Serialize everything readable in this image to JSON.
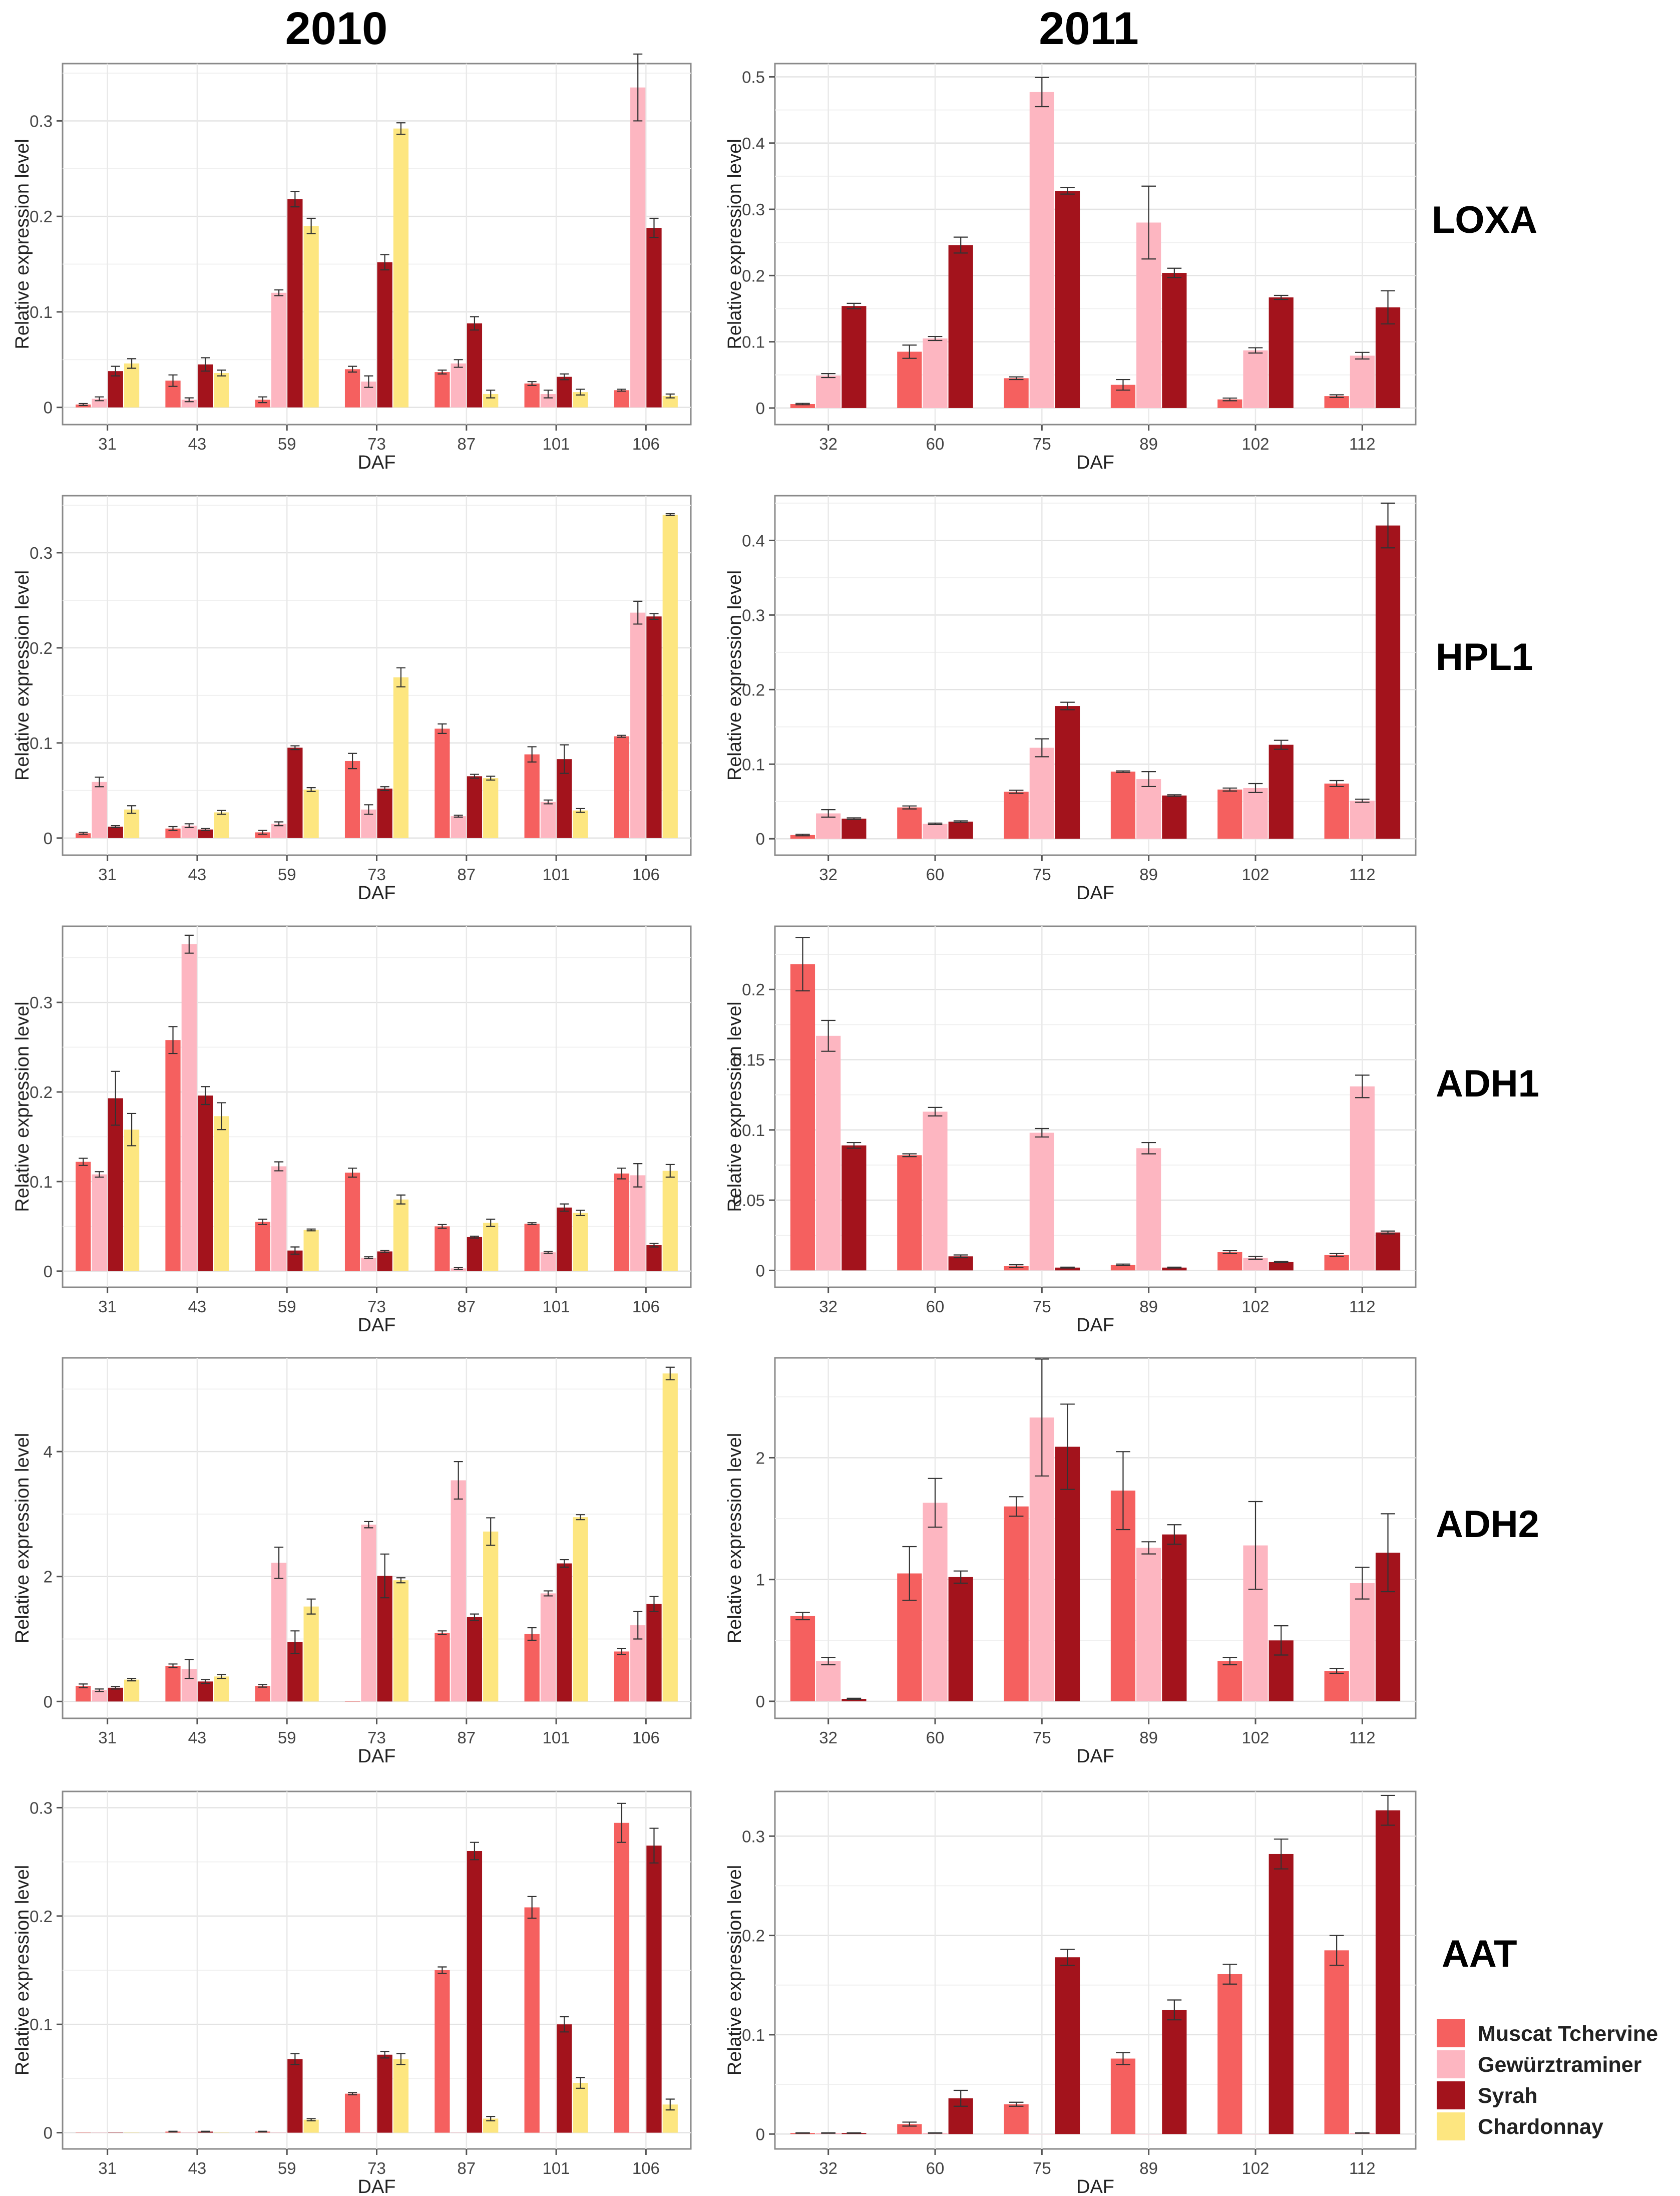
{
  "years": [
    "2010",
    "2011"
  ],
  "genes": [
    "LOXA",
    "HPL1",
    "ADH1",
    "ADH2",
    "AAT"
  ],
  "legend": {
    "entries": [
      {
        "name": "Muscat Tchervine",
        "color": "#f5605f"
      },
      {
        "name": "Gewürztraminer",
        "color": "#fdb6c1"
      },
      {
        "name": "Syrah",
        "color": "#a3131c"
      },
      {
        "name": "Chardonnay",
        "color": "#fde680"
      }
    ]
  },
  "chart_data": [
    {
      "type": "bar",
      "gene": "LOXA",
      "year": "2010",
      "xlabel": "DAF",
      "ylabel": "Relative expression level",
      "categories": [
        "31",
        "43",
        "59",
        "73",
        "87",
        "101",
        "106"
      ],
      "ylim": [
        -0.018,
        0.36
      ],
      "yticks": [
        0.0,
        0.1,
        0.2,
        0.3
      ],
      "series": [
        {
          "name": "Muscat Tchervine",
          "values": [
            0.003,
            0.028,
            0.008,
            0.04,
            0.037,
            0.025,
            0.018
          ],
          "errors": [
            0.001,
            0.006,
            0.003,
            0.003,
            0.002,
            0.002,
            0.001
          ]
        },
        {
          "name": "Gewürztraminer",
          "values": [
            0.009,
            0.008,
            0.12,
            0.027,
            0.046,
            0.014,
            0.335
          ],
          "errors": [
            0.002,
            0.002,
            0.003,
            0.006,
            0.004,
            0.004,
            0.035
          ]
        },
        {
          "name": "Syrah",
          "values": [
            0.038,
            0.045,
            0.218,
            0.152,
            0.088,
            0.032,
            0.188
          ],
          "errors": [
            0.005,
            0.007,
            0.008,
            0.008,
            0.007,
            0.003,
            0.01
          ]
        },
        {
          "name": "Chardonnay",
          "values": [
            0.046,
            0.036,
            0.19,
            0.292,
            0.014,
            0.016,
            0.012
          ],
          "errors": [
            0.005,
            0.003,
            0.008,
            0.006,
            0.004,
            0.003,
            0.002
          ]
        }
      ]
    },
    {
      "type": "bar",
      "gene": "LOXA",
      "year": "2011",
      "xlabel": "DAF",
      "ylabel": "Relative expression level",
      "categories": [
        "32",
        "60",
        "75",
        "89",
        "102",
        "112"
      ],
      "ylim": [
        -0.025,
        0.52
      ],
      "yticks": [
        0.0,
        0.1,
        0.2,
        0.3,
        0.4,
        0.5
      ],
      "series": [
        {
          "name": "Muscat Tchervine",
          "values": [
            0.006,
            0.085,
            0.045,
            0.035,
            0.013,
            0.018
          ],
          "errors": [
            0.001,
            0.01,
            0.002,
            0.008,
            0.002,
            0.002
          ]
        },
        {
          "name": "Gewürztraminer",
          "values": [
            0.049,
            0.105,
            0.477,
            0.28,
            0.087,
            0.079
          ],
          "errors": [
            0.003,
            0.003,
            0.022,
            0.055,
            0.004,
            0.005
          ]
        },
        {
          "name": "Syrah",
          "values": [
            0.154,
            0.246,
            0.328,
            0.204,
            0.167,
            0.152
          ],
          "errors": [
            0.004,
            0.012,
            0.005,
            0.007,
            0.003,
            0.025
          ]
        }
      ]
    },
    {
      "type": "bar",
      "gene": "HPL1",
      "year": "2010",
      "xlabel": "DAF",
      "ylabel": "Relative expression level",
      "categories": [
        "31",
        "43",
        "59",
        "73",
        "87",
        "101",
        "106"
      ],
      "ylim": [
        -0.018,
        0.36
      ],
      "yticks": [
        0.0,
        0.1,
        0.2,
        0.3
      ],
      "series": [
        {
          "name": "Muscat Tchervine",
          "values": [
            0.005,
            0.01,
            0.006,
            0.081,
            0.115,
            0.088,
            0.107
          ],
          "errors": [
            0.001,
            0.002,
            0.002,
            0.008,
            0.005,
            0.008,
            0.001
          ]
        },
        {
          "name": "Gewürztraminer",
          "values": [
            0.059,
            0.013,
            0.015,
            0.03,
            0.023,
            0.038,
            0.237
          ],
          "errors": [
            0.005,
            0.002,
            0.002,
            0.005,
            0.001,
            0.002,
            0.012
          ]
        },
        {
          "name": "Syrah",
          "values": [
            0.012,
            0.009,
            0.095,
            0.052,
            0.065,
            0.083,
            0.233
          ],
          "errors": [
            0.001,
            0.001,
            0.002,
            0.002,
            0.002,
            0.015,
            0.003
          ]
        },
        {
          "name": "Chardonnay",
          "values": [
            0.03,
            0.027,
            0.051,
            0.169,
            0.063,
            0.029,
            0.34
          ],
          "errors": [
            0.004,
            0.002,
            0.002,
            0.01,
            0.002,
            0.002,
            0.001
          ]
        }
      ]
    },
    {
      "type": "bar",
      "gene": "HPL1",
      "year": "2011",
      "xlabel": "DAF",
      "ylabel": "Relative expression level",
      "categories": [
        "32",
        "60",
        "75",
        "89",
        "102",
        "112"
      ],
      "ylim": [
        -0.022,
        0.46
      ],
      "yticks": [
        0.0,
        0.1,
        0.2,
        0.3,
        0.4
      ],
      "series": [
        {
          "name": "Muscat Tchervine",
          "values": [
            0.005,
            0.042,
            0.063,
            0.09,
            0.066,
            0.074
          ],
          "errors": [
            0.001,
            0.002,
            0.002,
            0.001,
            0.002,
            0.004
          ]
        },
        {
          "name": "Gewürztraminer",
          "values": [
            0.034,
            0.02,
            0.122,
            0.08,
            0.068,
            0.051
          ],
          "errors": [
            0.005,
            0.001,
            0.012,
            0.01,
            0.006,
            0.002
          ]
        },
        {
          "name": "Syrah",
          "values": [
            0.027,
            0.023,
            0.178,
            0.058,
            0.126,
            0.42
          ],
          "errors": [
            0.001,
            0.001,
            0.005,
            0.001,
            0.006,
            0.03
          ]
        }
      ]
    },
    {
      "type": "bar",
      "gene": "ADH1",
      "year": "2010",
      "xlabel": "DAF",
      "ylabel": "Relative expression level",
      "categories": [
        "31",
        "43",
        "59",
        "73",
        "87",
        "101",
        "106"
      ],
      "ylim": [
        -0.018,
        0.385
      ],
      "yticks": [
        0.0,
        0.1,
        0.2,
        0.3
      ],
      "series": [
        {
          "name": "Muscat Tchervine",
          "values": [
            0.122,
            0.258,
            0.055,
            0.11,
            0.05,
            0.053,
            0.109
          ],
          "errors": [
            0.004,
            0.015,
            0.003,
            0.005,
            0.002,
            0.001,
            0.006
          ]
        },
        {
          "name": "Gewürztraminer",
          "values": [
            0.108,
            0.365,
            0.117,
            0.015,
            0.003,
            0.021,
            0.107
          ],
          "errors": [
            0.003,
            0.01,
            0.005,
            0.001,
            0.001,
            0.001,
            0.013
          ]
        },
        {
          "name": "Syrah",
          "values": [
            0.193,
            0.196,
            0.023,
            0.022,
            0.038,
            0.071,
            0.029
          ],
          "errors": [
            0.03,
            0.01,
            0.004,
            0.001,
            0.001,
            0.004,
            0.002
          ]
        },
        {
          "name": "Chardonnay",
          "values": [
            0.158,
            0.173,
            0.046,
            0.08,
            0.054,
            0.065,
            0.112
          ],
          "errors": [
            0.018,
            0.015,
            0.001,
            0.005,
            0.004,
            0.003,
            0.007
          ]
        }
      ]
    },
    {
      "type": "bar",
      "gene": "ADH1",
      "year": "2011",
      "xlabel": "DAF",
      "ylabel": "Relative expression level",
      "categories": [
        "32",
        "60",
        "75",
        "89",
        "102",
        "112"
      ],
      "ylim": [
        -0.012,
        0.245
      ],
      "yticks": [
        0.0,
        0.05,
        0.1,
        0.15,
        0.2
      ],
      "series": [
        {
          "name": "Muscat Tchervine",
          "values": [
            0.218,
            0.082,
            0.003,
            0.004,
            0.013,
            0.011
          ],
          "errors": [
            0.019,
            0.001,
            0.001,
            0.0005,
            0.001,
            0.001
          ]
        },
        {
          "name": "Gewürztraminer",
          "values": [
            0.167,
            0.113,
            0.098,
            0.087,
            0.009,
            0.131
          ],
          "errors": [
            0.011,
            0.003,
            0.003,
            0.004,
            0.001,
            0.008
          ]
        },
        {
          "name": "Syrah",
          "values": [
            0.089,
            0.01,
            0.002,
            0.002,
            0.006,
            0.027
          ],
          "errors": [
            0.002,
            0.001,
            0.0003,
            0.0003,
            0.0005,
            0.001
          ]
        }
      ]
    },
    {
      "type": "bar",
      "gene": "ADH2",
      "year": "2010",
      "xlabel": "DAF",
      "ylabel": "Relative expression level",
      "categories": [
        "31",
        "43",
        "59",
        "73",
        "87",
        "101",
        "106"
      ],
      "ylim": [
        -0.27,
        5.5
      ],
      "yticks": [
        0,
        2,
        4
      ],
      "series": [
        {
          "name": "Muscat Tchervine",
          "values": [
            0.25,
            0.57,
            0.25,
            0.0,
            1.1,
            1.08,
            0.8
          ],
          "errors": [
            0.03,
            0.03,
            0.02,
            0.0,
            0.03,
            0.1,
            0.05
          ]
        },
        {
          "name": "Gewürztraminer",
          "values": [
            0.18,
            0.52,
            2.22,
            2.83,
            3.54,
            1.73,
            1.22
          ],
          "errors": [
            0.02,
            0.15,
            0.25,
            0.05,
            0.3,
            0.04,
            0.22
          ]
        },
        {
          "name": "Syrah",
          "values": [
            0.22,
            0.32,
            0.95,
            2.01,
            1.35,
            2.21,
            1.56
          ],
          "errors": [
            0.02,
            0.03,
            0.18,
            0.35,
            0.05,
            0.06,
            0.12
          ]
        },
        {
          "name": "Chardonnay",
          "values": [
            0.35,
            0.4,
            1.52,
            1.94,
            2.72,
            2.95,
            5.25
          ],
          "errors": [
            0.02,
            0.03,
            0.12,
            0.04,
            0.22,
            0.04,
            0.1
          ]
        }
      ]
    },
    {
      "type": "bar",
      "gene": "ADH2",
      "year": "2011",
      "xlabel": "DAF",
      "ylabel": "Relative expression level",
      "categories": [
        "32",
        "60",
        "75",
        "89",
        "102",
        "112"
      ],
      "ylim": [
        -0.14,
        2.82
      ],
      "yticks": [
        0,
        1,
        2
      ],
      "series": [
        {
          "name": "Muscat Tchervine",
          "values": [
            0.7,
            1.05,
            1.6,
            1.73,
            0.33,
            0.25
          ],
          "errors": [
            0.03,
            0.22,
            0.08,
            0.32,
            0.03,
            0.02
          ]
        },
        {
          "name": "Gewürztraminer",
          "values": [
            0.33,
            1.63,
            2.33,
            1.26,
            1.28,
            0.97
          ],
          "errors": [
            0.03,
            0.2,
            0.48,
            0.05,
            0.36,
            0.13
          ]
        },
        {
          "name": "Syrah",
          "values": [
            0.02,
            1.02,
            2.09,
            1.37,
            0.5,
            1.22
          ],
          "errors": [
            0.005,
            0.05,
            0.35,
            0.08,
            0.12,
            0.32
          ]
        }
      ]
    },
    {
      "type": "bar",
      "gene": "AAT",
      "year": "2010",
      "xlabel": "DAF",
      "ylabel": "Relative expression level",
      "categories": [
        "31",
        "43",
        "59",
        "73",
        "87",
        "101",
        "106"
      ],
      "ylim": [
        -0.015,
        0.315
      ],
      "yticks": [
        0.0,
        0.1,
        0.2,
        0.3
      ],
      "series": [
        {
          "name": "Muscat Tchervine",
          "values": [
            0.0,
            0.001,
            0.001,
            0.036,
            0.15,
            0.208,
            0.286
          ],
          "errors": [
            0.0,
            0.0003,
            0.0003,
            0.001,
            0.003,
            0.01,
            0.018
          ]
        },
        {
          "name": "Gewürztraminer",
          "values": [
            0.0,
            0.0,
            0.0,
            0.0,
            0.0,
            0.0,
            0.0
          ],
          "errors": [
            0,
            0,
            0,
            0,
            0,
            0,
            0
          ]
        },
        {
          "name": "Syrah",
          "values": [
            0.0,
            0.001,
            0.068,
            0.072,
            0.26,
            0.1,
            0.265
          ],
          "errors": [
            0.0,
            0.0003,
            0.005,
            0.003,
            0.008,
            0.007,
            0.016
          ]
        },
        {
          "name": "Chardonnay",
          "values": [
            0.0,
            0.0,
            0.012,
            0.068,
            0.013,
            0.046,
            0.026
          ],
          "errors": [
            0.0,
            0.0,
            0.001,
            0.005,
            0.002,
            0.005,
            0.005
          ]
        }
      ]
    },
    {
      "type": "bar",
      "gene": "AAT",
      "year": "2011",
      "xlabel": "DAF",
      "ylabel": "Relative expression level",
      "categories": [
        "32",
        "60",
        "75",
        "89",
        "102",
        "112"
      ],
      "ylim": [
        -0.015,
        0.345
      ],
      "yticks": [
        0.0,
        0.1,
        0.2,
        0.3
      ],
      "series": [
        {
          "name": "Muscat Tchervine",
          "values": [
            0.001,
            0.01,
            0.03,
            0.076,
            0.161,
            0.185
          ],
          "errors": [
            0.0002,
            0.002,
            0.002,
            0.006,
            0.01,
            0.015
          ]
        },
        {
          "name": "Gewürztraminer",
          "values": [
            0.001,
            0.001,
            0.0,
            0.0,
            0.0,
            0.001
          ],
          "errors": [
            0.0002,
            0.0002,
            0.0,
            0.0,
            0.0,
            0.0002
          ]
        },
        {
          "name": "Syrah",
          "values": [
            0.001,
            0.036,
            0.178,
            0.125,
            0.282,
            0.326
          ],
          "errors": [
            0.0002,
            0.008,
            0.008,
            0.01,
            0.015,
            0.015
          ]
        }
      ]
    }
  ]
}
